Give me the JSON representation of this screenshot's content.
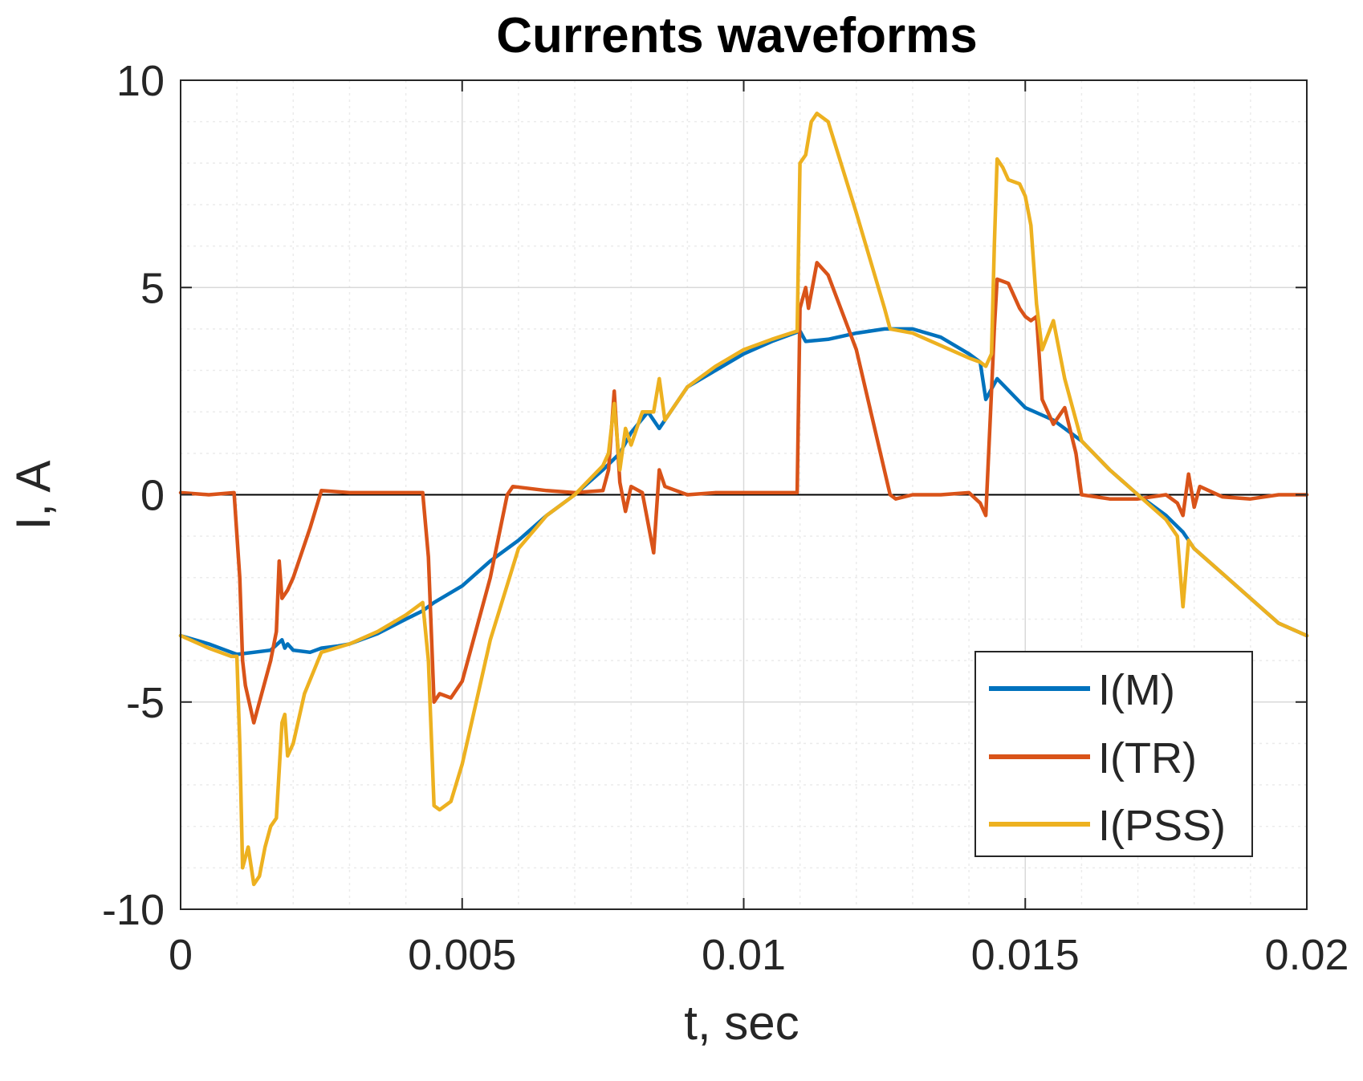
{
  "colors": {
    "i_m": "#0072BD",
    "i_tr": "#D95319",
    "i_pss": "#EDB120",
    "axis": "#262626",
    "grid_major": "#d9d9d9",
    "grid_minor": "#ebebeb",
    "zero_line": "#000000"
  },
  "chart_data": {
    "type": "line",
    "title": "Currents waveforms",
    "xlabel": "t, sec",
    "ylabel": "I, A",
    "xlim": [
      0,
      0.02
    ],
    "ylim": [
      -10,
      10
    ],
    "x_ticks": [
      {
        "value": 0,
        "label": "0"
      },
      {
        "value": 0.005,
        "label": "0.005"
      },
      {
        "value": 0.01,
        "label": "0.01"
      },
      {
        "value": 0.015,
        "label": "0.015"
      },
      {
        "value": 0.02,
        "label": "0.02"
      }
    ],
    "y_ticks": [
      {
        "value": -10,
        "label": "-10"
      },
      {
        "value": -5,
        "label": "-5"
      },
      {
        "value": 0,
        "label": "0"
      },
      {
        "value": 5,
        "label": "5"
      },
      {
        "value": 10,
        "label": "10"
      }
    ],
    "grid": true,
    "minor_grid": true,
    "legend_position": "bottom-right",
    "series": [
      {
        "name": "I(M)",
        "color_key": "i_m",
        "x": [
          0,
          0.0005,
          0.0008,
          0.001,
          0.0013,
          0.0016,
          0.0018,
          0.00185,
          0.0019,
          0.002,
          0.0023,
          0.0025,
          0.0028,
          0.003,
          0.0035,
          0.004,
          0.0043,
          0.0045,
          0.005,
          0.0055,
          0.006,
          0.0065,
          0.007,
          0.0075,
          0.0078,
          0.008,
          0.0083,
          0.0085,
          0.009,
          0.0095,
          0.01,
          0.0105,
          0.011,
          0.0111,
          0.0115,
          0.012,
          0.0125,
          0.013,
          0.0135,
          0.014,
          0.0142,
          0.0143,
          0.0145,
          0.015,
          0.0155,
          0.016,
          0.0165,
          0.017,
          0.0175,
          0.0178,
          0.018,
          0.0185,
          0.019,
          0.0195,
          0.02
        ],
        "y": [
          -3.4,
          -3.6,
          -3.75,
          -3.85,
          -3.8,
          -3.75,
          -3.5,
          -3.7,
          -3.6,
          -3.75,
          -3.8,
          -3.7,
          -3.65,
          -3.6,
          -3.35,
          -3.0,
          -2.8,
          -2.6,
          -2.2,
          -1.6,
          -1.1,
          -0.5,
          0.0,
          0.6,
          1.0,
          1.5,
          2.0,
          1.6,
          2.6,
          3.0,
          3.4,
          3.7,
          3.95,
          3.7,
          3.75,
          3.9,
          4.0,
          4.0,
          3.8,
          3.4,
          3.2,
          2.3,
          2.8,
          2.1,
          1.8,
          1.3,
          0.6,
          0.0,
          -0.5,
          -0.9,
          -1.3,
          -1.9,
          -2.5,
          -3.1,
          -3.4
        ]
      },
      {
        "name": "I(TR)",
        "color_key": "i_tr",
        "x": [
          0,
          0.0005,
          0.00095,
          0.00105,
          0.0011,
          0.00115,
          0.0013,
          0.0016,
          0.0017,
          0.00175,
          0.0018,
          0.0019,
          0.002,
          0.0023,
          0.0025,
          0.003,
          0.0035,
          0.004,
          0.0042,
          0.0043,
          0.0044,
          0.0045,
          0.0046,
          0.0048,
          0.005,
          0.0055,
          0.0058,
          0.0059,
          0.0065,
          0.007,
          0.0075,
          0.0076,
          0.0077,
          0.0078,
          0.0079,
          0.008,
          0.0082,
          0.0084,
          0.0085,
          0.0086,
          0.009,
          0.0095,
          0.01,
          0.0105,
          0.01095,
          0.011,
          0.0111,
          0.01115,
          0.0113,
          0.0115,
          0.012,
          0.0126,
          0.0127,
          0.013,
          0.0135,
          0.014,
          0.0142,
          0.0143,
          0.0144,
          0.01445,
          0.0145,
          0.0147,
          0.0149,
          0.015,
          0.0151,
          0.0152,
          0.0153,
          0.0155,
          0.0157,
          0.0159,
          0.016,
          0.0165,
          0.017,
          0.0175,
          0.0177,
          0.0178,
          0.0179,
          0.018,
          0.0181,
          0.0185,
          0.019,
          0.0195,
          0.02
        ],
        "y": [
          0.05,
          0.0,
          0.05,
          -2.0,
          -4.0,
          -4.6,
          -5.5,
          -4.0,
          -3.3,
          -1.6,
          -2.5,
          -2.3,
          -2.0,
          -0.8,
          0.1,
          0.05,
          0.05,
          0.05,
          0.05,
          0.05,
          -1.5,
          -5.0,
          -4.8,
          -4.9,
          -4.5,
          -2.0,
          0.0,
          0.2,
          0.1,
          0.05,
          0.1,
          0.6,
          2.5,
          0.3,
          -0.4,
          0.2,
          0.05,
          -1.4,
          0.6,
          0.2,
          0.0,
          0.05,
          0.05,
          0.05,
          0.05,
          4.5,
          5.0,
          4.5,
          5.6,
          5.3,
          3.5,
          0.0,
          -0.1,
          0.0,
          0.0,
          0.05,
          -0.2,
          -0.5,
          2.5,
          4.0,
          5.2,
          5.1,
          4.5,
          4.3,
          4.2,
          4.3,
          2.3,
          1.7,
          2.1,
          1.0,
          0.0,
          -0.1,
          -0.1,
          0.0,
          -0.2,
          -0.5,
          0.5,
          -0.3,
          0.2,
          -0.05,
          -0.1,
          0.0,
          0.0
        ]
      },
      {
        "name": "I(PSS)",
        "color_key": "i_pss",
        "x": [
          0,
          0.0005,
          0.0009,
          0.001,
          0.00105,
          0.0011,
          0.0012,
          0.0013,
          0.0014,
          0.0015,
          0.0016,
          0.0017,
          0.0018,
          0.00185,
          0.0019,
          0.002,
          0.0022,
          0.0025,
          0.003,
          0.0035,
          0.004,
          0.0043,
          0.0044,
          0.0045,
          0.0046,
          0.0048,
          0.005,
          0.0055,
          0.006,
          0.0065,
          0.007,
          0.0075,
          0.0076,
          0.0077,
          0.0078,
          0.0079,
          0.008,
          0.0082,
          0.0084,
          0.0085,
          0.0086,
          0.009,
          0.0095,
          0.01,
          0.0105,
          0.01095,
          0.011,
          0.0111,
          0.0112,
          0.0113,
          0.0115,
          0.012,
          0.0125,
          0.0126,
          0.013,
          0.0135,
          0.014,
          0.0142,
          0.0143,
          0.0144,
          0.01445,
          0.0145,
          0.0146,
          0.0147,
          0.0149,
          0.015,
          0.0151,
          0.0152,
          0.0153,
          0.0155,
          0.0157,
          0.016,
          0.0165,
          0.017,
          0.0175,
          0.0176,
          0.0177,
          0.0178,
          0.0179,
          0.018,
          0.0185,
          0.019,
          0.0195,
          0.02
        ],
        "y": [
          -3.4,
          -3.7,
          -3.9,
          -3.9,
          -6.0,
          -9.0,
          -8.5,
          -9.4,
          -9.2,
          -8.5,
          -8.0,
          -7.8,
          -5.5,
          -5.3,
          -6.3,
          -6.0,
          -4.8,
          -3.8,
          -3.6,
          -3.3,
          -2.9,
          -2.6,
          -4.0,
          -7.5,
          -7.6,
          -7.4,
          -6.5,
          -3.5,
          -1.3,
          -0.5,
          0.0,
          0.7,
          1.0,
          2.2,
          0.6,
          1.6,
          1.2,
          2.0,
          2.0,
          2.8,
          1.8,
          2.6,
          3.1,
          3.5,
          3.75,
          3.95,
          8.0,
          8.2,
          9.0,
          9.2,
          9.0,
          6.8,
          4.5,
          4.0,
          3.9,
          3.6,
          3.3,
          3.2,
          3.1,
          3.4,
          6.0,
          8.1,
          7.9,
          7.6,
          7.5,
          7.2,
          6.5,
          4.6,
          3.5,
          4.2,
          2.8,
          1.3,
          0.6,
          0.0,
          -0.6,
          -0.8,
          -1.0,
          -2.7,
          -1.1,
          -1.3,
          -1.9,
          -2.5,
          -3.1,
          -3.4
        ]
      }
    ]
  }
}
